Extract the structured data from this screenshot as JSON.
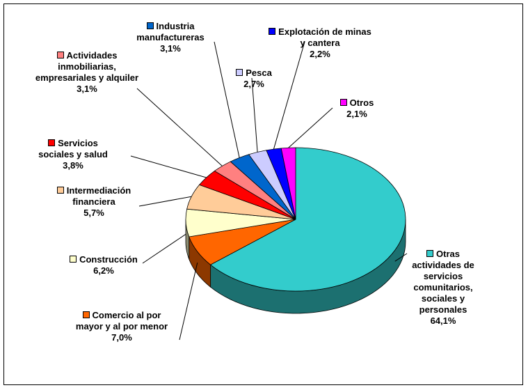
{
  "chart_data": {
    "type": "pie",
    "categories": [
      "Otras actividades de servicios comunitarios, sociales y personales",
      "Comercio al por mayor y al por menor",
      "Construcción",
      "Intermediación financiera",
      "Servicios sociales y salud",
      "Actividades inmobiliarias, empresariales y alquiler",
      "Industria manufactureras",
      "Pesca",
      "Explotación de minas y cantera",
      "Otros"
    ],
    "values": [
      64.1,
      7.0,
      6.2,
      5.7,
      3.8,
      3.1,
      3.1,
      2.7,
      2.2,
      2.1
    ],
    "value_labels": [
      "64,1%",
      "7,0%",
      "6,2%",
      "5,7%",
      "3,8%",
      "3,1%",
      "3,1%",
      "2,7%",
      "2,2%",
      "2,1%"
    ],
    "colors": [
      "#33cccc",
      "#ff6600",
      "#ffffcc",
      "#ffcc99",
      "#ff0000",
      "#ff8080",
      "#0066cc",
      "#ccccff",
      "#0000ff",
      "#ff00ff"
    ]
  }
}
